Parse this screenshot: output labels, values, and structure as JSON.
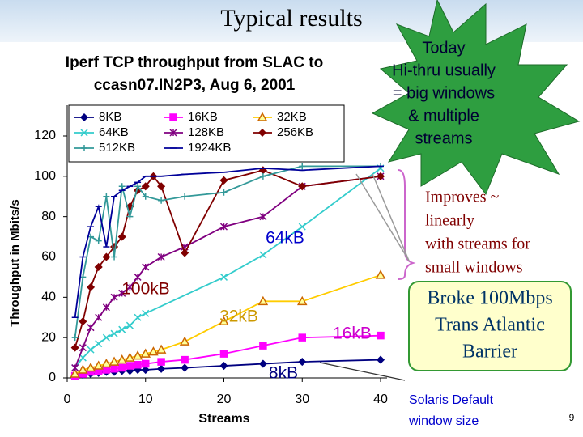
{
  "title": "Typical results",
  "page_number": "9",
  "starburst": [
    "Today",
    "Hi-thru usually",
    "= big windows",
    "& multiple",
    "streams"
  ],
  "brace_note": [
    "Improves ~",
    "linearly",
    "with streams for",
    "small windows"
  ],
  "callout": [
    "Broke 100Mbps",
    "Trans Atlantic",
    "Barrier"
  ],
  "footnote": [
    "Solaris Default",
    "window size"
  ],
  "chart_data": {
    "type": "line",
    "title": [
      "Iperf TCP throughput from SLAC to",
      "ccasn07.IN2P3, Aug 6, 2001"
    ],
    "xlabel": "Streams",
    "ylabel": "Throughput in Mbits/s",
    "xlim": [
      0,
      40
    ],
    "xticks": [
      0,
      10,
      20,
      30,
      40
    ],
    "ylim": [
      0,
      120
    ],
    "yticks": [
      0,
      20,
      40,
      60,
      80,
      100,
      120
    ],
    "series": [
      {
        "name": "8KB",
        "color": "#000080",
        "marker": "diamond",
        "x": [
          1,
          2,
          3,
          4,
          5,
          6,
          7,
          8,
          9,
          10,
          12,
          15,
          20,
          25,
          30,
          40
        ],
        "values": [
          1,
          1.5,
          2,
          2.5,
          3,
          3,
          3.5,
          3.5,
          4,
          4,
          4.5,
          5,
          6,
          7,
          8,
          9
        ]
      },
      {
        "name": "16KB",
        "color": "#ff00ff",
        "marker": "square",
        "x": [
          1,
          2,
          3,
          4,
          5,
          6,
          7,
          8,
          9,
          10,
          12,
          15,
          20,
          25,
          30,
          40
        ],
        "values": [
          1,
          2,
          3,
          3.5,
          4,
          4.5,
          5,
          6,
          6.5,
          7,
          8,
          9,
          12,
          16,
          20,
          21
        ]
      },
      {
        "name": "32KB",
        "color": "#ffcc00",
        "marker": "triangle",
        "x": [
          1,
          2,
          3,
          4,
          5,
          6,
          7,
          8,
          9,
          10,
          11,
          12,
          15,
          20,
          25,
          30,
          40
        ],
        "values": [
          2,
          4,
          5,
          6,
          7,
          8,
          9,
          10,
          11,
          12,
          13,
          14,
          18,
          28,
          38,
          38,
          51
        ]
      },
      {
        "name": "64KB",
        "color": "#33cccc",
        "marker": "x",
        "x": [
          1,
          2,
          3,
          4,
          5,
          6,
          7,
          8,
          9,
          10,
          20,
          25,
          30,
          40
        ],
        "values": [
          5,
          10,
          14,
          17,
          20,
          22,
          24,
          26,
          30,
          32,
          50,
          61,
          75,
          104
        ]
      },
      {
        "name": "128KB",
        "color": "#800080",
        "marker": "star",
        "x": [
          1,
          2,
          3,
          4,
          5,
          6,
          7,
          8,
          9,
          10,
          12,
          15,
          20,
          25,
          30,
          40
        ],
        "values": [
          5,
          15,
          25,
          30,
          35,
          40,
          42,
          45,
          50,
          55,
          60,
          65,
          75,
          80,
          95,
          100
        ]
      },
      {
        "name": "256KB",
        "color": "#800000",
        "marker": "diamond",
        "x": [
          1,
          2,
          3,
          4,
          5,
          6,
          7,
          8,
          9,
          10,
          11,
          12,
          15,
          20,
          25,
          30,
          40
        ],
        "values": [
          15,
          28,
          45,
          55,
          60,
          65,
          70,
          85,
          93,
          95,
          100,
          95,
          62,
          98,
          103,
          95,
          100
        ]
      },
      {
        "name": "512KB",
        "color": "#339999",
        "marker": "plus",
        "x": [
          1,
          2,
          3,
          4,
          5,
          6,
          7,
          8,
          9,
          10,
          12,
          15,
          20,
          25,
          30,
          40
        ],
        "values": [
          20,
          50,
          70,
          68,
          90,
          60,
          95,
          80,
          95,
          90,
          88,
          90,
          92,
          100,
          105,
          105
        ]
      },
      {
        "name": "1924KB",
        "color": "#000099",
        "marker": "dash",
        "x": [
          1,
          2,
          3,
          4,
          5,
          6,
          7,
          8,
          9,
          10,
          12,
          15,
          20,
          25,
          30,
          40
        ],
        "values": [
          30,
          60,
          75,
          85,
          65,
          90,
          93,
          95,
          97,
          100,
          100,
          101,
          102,
          104,
          103,
          105
        ]
      }
    ],
    "annotations": [
      {
        "text": "64kB",
        "color": "#0000cc"
      },
      {
        "text": "100kB",
        "color": "#800000"
      },
      {
        "text": "32kB",
        "color": "#cc9900"
      },
      {
        "text": "16kB",
        "color": "#cc00cc"
      },
      {
        "text": "8kB",
        "color": "#000080"
      }
    ]
  }
}
